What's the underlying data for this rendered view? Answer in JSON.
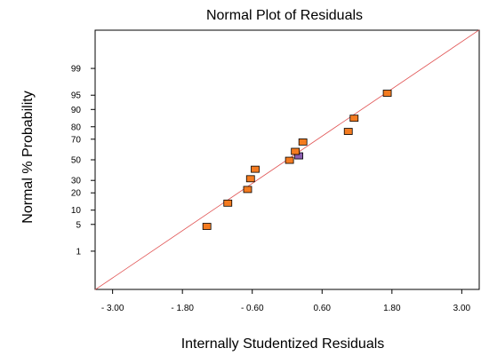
{
  "chart_data": {
    "type": "scatter",
    "title": "Normal Plot of Residuals",
    "xlabel": "Internally Studentized Residuals",
    "ylabel": "Normal % Probability",
    "xlim": [
      -3.3,
      3.3
    ],
    "x_ticks": [
      -3.0,
      -1.8,
      -0.6,
      0.6,
      1.8,
      3.0
    ],
    "x_tick_labels": [
      "- 3.00",
      "- 1.80",
      "- 0.60",
      "0.60",
      "1.80",
      "3.00"
    ],
    "y_scale": "normal-probability",
    "y_ticks": [
      1,
      5,
      10,
      20,
      30,
      50,
      70,
      80,
      90,
      95,
      99
    ],
    "y_tick_labels": [
      "1",
      "5",
      "10",
      "20",
      "30",
      "50",
      "70",
      "80",
      "90",
      "95",
      "99"
    ],
    "grid": false,
    "colors": {
      "marker_fill": "#f47b20",
      "marker_stroke": "#000000",
      "reference_line": "#e05050",
      "secondary_marker": "#8b5fb0"
    },
    "series": [
      {
        "points": [
          {
            "x": -1.38,
            "y": 4.5
          },
          {
            "x": -1.02,
            "y": 13.5
          },
          {
            "x": -0.68,
            "y": 22.5
          },
          {
            "x": -0.63,
            "y": 31.5
          },
          {
            "x": -0.55,
            "y": 40.5
          },
          {
            "x": 0.04,
            "y": 49.5
          },
          {
            "x": 0.14,
            "y": 58.5
          },
          {
            "x": 0.27,
            "y": 67.5
          },
          {
            "x": 1.05,
            "y": 76.5
          },
          {
            "x": 1.15,
            "y": 85.5
          },
          {
            "x": 1.72,
            "y": 95.5
          }
        ]
      }
    ],
    "extra_points": [
      {
        "x": 0.2,
        "y": 54
      }
    ],
    "reference_line": {
      "from": {
        "x": -3.3,
        "y": 0.047
      },
      "to": {
        "x": 3.3,
        "y": 99.953
      }
    }
  }
}
